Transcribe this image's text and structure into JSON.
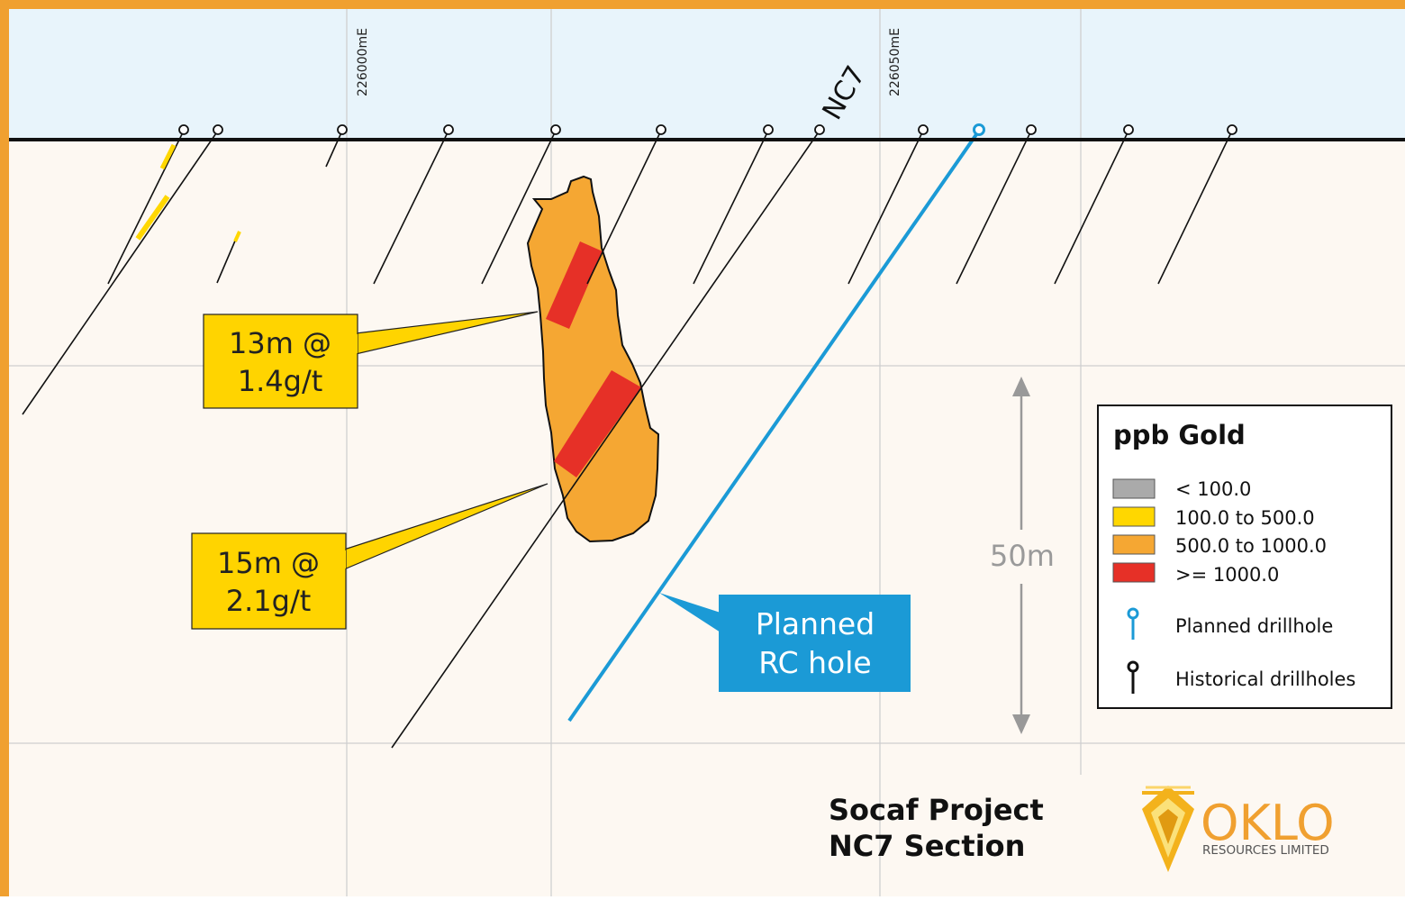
{
  "colors": {
    "frame": "#f0a030",
    "sky": "#e8f4fb",
    "ground": "#fdf8f2",
    "gold_low": "#aaaaaa",
    "gold_mid": "#ffd700",
    "gold_high": "#f5a733",
    "gold_top": "#e63027",
    "planned": "#1b9ad6",
    "callout_yellow": "#ffd400"
  },
  "grid_labels": {
    "e1": "226000mE",
    "e2": "226050mE"
  },
  "section_name": "NC7",
  "intercepts": [
    {
      "line1": "13m @",
      "line2": "1.4g/t"
    },
    {
      "line1": "15m @",
      "line2": "2.1g/t"
    }
  ],
  "planned_callout": {
    "line1": "Planned",
    "line2": "RC hole"
  },
  "scale_label": "50m",
  "legend": {
    "title": "ppb Gold",
    "items": [
      {
        "label": "< 100.0",
        "color": "#aaaaaa"
      },
      {
        "label": "100.0 to 500.0",
        "color": "#ffd700"
      },
      {
        "label": "500.0 to 1000.0",
        "color": "#f5a733"
      },
      {
        "label": ">= 1000.0",
        "color": "#e63027"
      }
    ],
    "planned_label": "Planned drillhole",
    "historical_label": "Historical drillholes"
  },
  "project": {
    "line1": "Socaf Project",
    "line2": "NC7 Section"
  },
  "logo": {
    "name": "OKLO",
    "sub": "RESOURCES LIMITED"
  }
}
